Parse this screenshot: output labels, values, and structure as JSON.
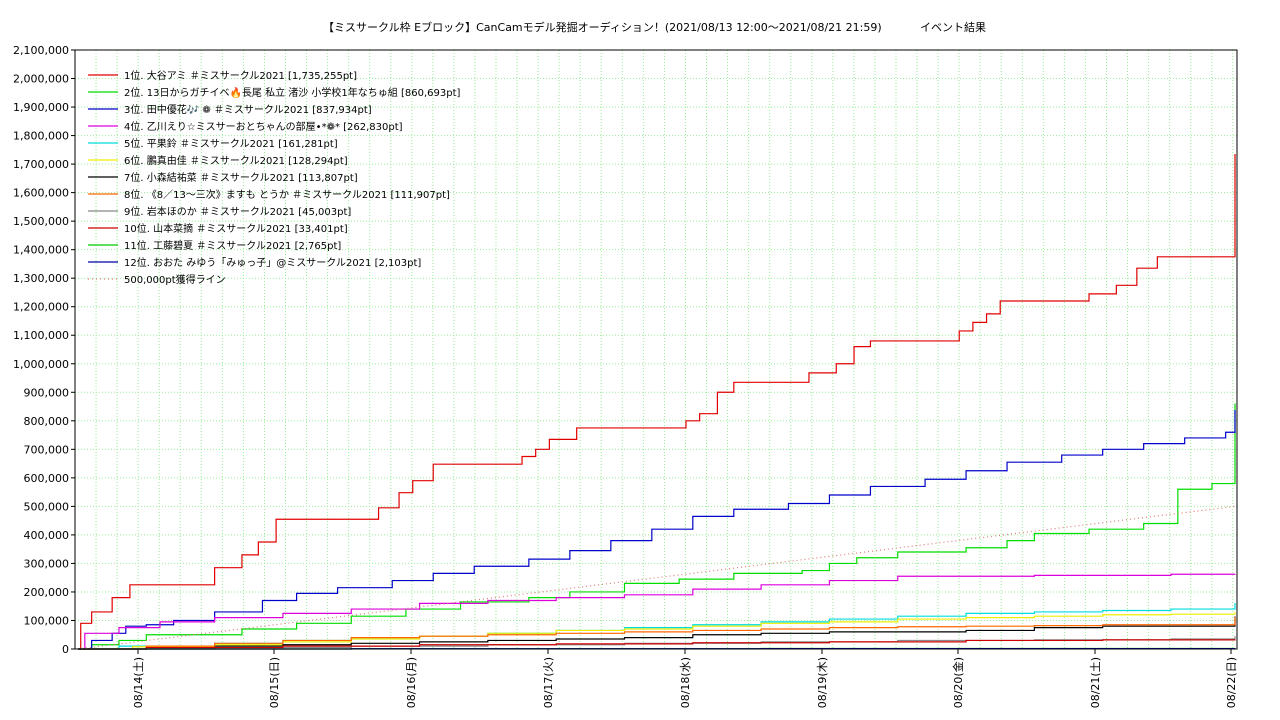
{
  "chart_data": {
    "type": "line",
    "title": "【ミスサークル枠 Eブロック】CanCamモデル発掘オーディション！(2021/08/13 12:00〜2021/08/21 21:59)",
    "subtitle": "イベント結果",
    "xlabel": "",
    "ylabel": "",
    "ylim": [
      0,
      2100000
    ],
    "yticks": [
      0,
      100000,
      200000,
      300000,
      400000,
      500000,
      600000,
      700000,
      800000,
      900000,
      1000000,
      1100000,
      1200000,
      1300000,
      1400000,
      1500000,
      1600000,
      1700000,
      1800000,
      1900000,
      2000000,
      2100000
    ],
    "ytick_labels": [
      "0",
      "100,000",
      "200,000",
      "300,000",
      "400,000",
      "500,000",
      "600,000",
      "700,000",
      "800,000",
      "900,000",
      "1,000,000",
      "1,100,000",
      "1,200,000",
      "1,300,000",
      "1,400,000",
      "1,500,000",
      "1,600,000",
      "1,700,000",
      "1,800,000",
      "1,900,000",
      "2,000,000",
      "2,100,000"
    ],
    "xlim_hours": [
      0,
      8.5
    ],
    "xticks": [
      0.5,
      1.5,
      2.5,
      3.5,
      4.5,
      5.5,
      6.5,
      7.5,
      8.5
    ],
    "xtick_labels": [
      "08/14(土)",
      "08/15(日)",
      "08/16(月)",
      "08/17(火)",
      "08/18(水)",
      "08/19(木)",
      "08/20(金)",
      "08/21(土)",
      "08/22(日)"
    ],
    "grid": true,
    "legend_position": "top-left",
    "series": [
      {
        "name": "1位. 大谷アミ ＃ミスサークル2021 [1,735,255pt]",
        "color": "#e00000",
        "points": [
          [
            0.0,
            0
          ],
          [
            0.02,
            90000
          ],
          [
            0.1,
            130000
          ],
          [
            0.25,
            180000
          ],
          [
            0.38,
            225000
          ],
          [
            0.8,
            225000
          ],
          [
            1.0,
            285000
          ],
          [
            1.2,
            330000
          ],
          [
            1.32,
            375000
          ],
          [
            1.45,
            455000
          ],
          [
            2.0,
            455000
          ],
          [
            2.2,
            495000
          ],
          [
            2.35,
            548000
          ],
          [
            2.45,
            590000
          ],
          [
            2.6,
            648000
          ],
          [
            3.1,
            648000
          ],
          [
            3.25,
            675000
          ],
          [
            3.35,
            700000
          ],
          [
            3.45,
            735000
          ],
          [
            3.65,
            775000
          ],
          [
            4.3,
            775000
          ],
          [
            4.45,
            800000
          ],
          [
            4.55,
            825000
          ],
          [
            4.68,
            900000
          ],
          [
            4.8,
            935000
          ],
          [
            5.3,
            935000
          ],
          [
            5.35,
            968000
          ],
          [
            5.55,
            1000000
          ],
          [
            5.68,
            1060000
          ],
          [
            5.8,
            1080000
          ],
          [
            6.3,
            1080000
          ],
          [
            6.45,
            1115000
          ],
          [
            6.55,
            1145000
          ],
          [
            6.65,
            1175000
          ],
          [
            6.75,
            1220000
          ],
          [
            7.25,
            1220000
          ],
          [
            7.4,
            1245000
          ],
          [
            7.6,
            1275000
          ],
          [
            7.75,
            1335000
          ],
          [
            7.9,
            1375000
          ],
          [
            8.4,
            1375000
          ],
          [
            8.55,
            1415000
          ],
          [
            8.7,
            1455000
          ],
          [
            8.85,
            1515000
          ],
          [
            9.0,
            1550000
          ],
          [
            9.05,
            1735255
          ],
          [
            9.2,
            1735255
          ]
        ]
      },
      {
        "name": "2位. 13日からガチイベ🔥長尾 私立 渚沙 小学校1年なちゅ組 [860,693pt]",
        "color": "#00dd00",
        "points": [
          [
            0.0,
            0
          ],
          [
            0.1,
            15000
          ],
          [
            0.3,
            30000
          ],
          [
            0.5,
            50000
          ],
          [
            1.0,
            50000
          ],
          [
            1.2,
            70000
          ],
          [
            1.6,
            90000
          ],
          [
            2.0,
            115000
          ],
          [
            2.4,
            140000
          ],
          [
            2.8,
            165000
          ],
          [
            3.3,
            180000
          ],
          [
            3.6,
            200000
          ],
          [
            4.0,
            230000
          ],
          [
            4.4,
            245000
          ],
          [
            4.8,
            265000
          ],
          [
            5.3,
            275000
          ],
          [
            5.5,
            300000
          ],
          [
            5.7,
            320000
          ],
          [
            6.0,
            340000
          ],
          [
            6.5,
            355000
          ],
          [
            6.8,
            380000
          ],
          [
            7.0,
            405000
          ],
          [
            7.4,
            420000
          ],
          [
            7.8,
            440000
          ],
          [
            8.0,
            440000
          ],
          [
            8.05,
            560000
          ],
          [
            8.3,
            580000
          ],
          [
            8.5,
            600000
          ],
          [
            8.75,
            640000
          ],
          [
            8.9,
            660000
          ],
          [
            9.0,
            700000
          ],
          [
            9.05,
            860693
          ],
          [
            9.2,
            860693
          ]
        ]
      },
      {
        "name": "3位. 田中優花🎶 ❁ ＃ミスサークル2021 [837,934pt]",
        "color": "#0000cc",
        "points": [
          [
            0.0,
            0
          ],
          [
            0.1,
            30000
          ],
          [
            0.25,
            55000
          ],
          [
            0.35,
            80000
          ],
          [
            0.5,
            85000
          ],
          [
            0.7,
            100000
          ],
          [
            1.0,
            130000
          ],
          [
            1.35,
            170000
          ],
          [
            1.6,
            195000
          ],
          [
            1.9,
            215000
          ],
          [
            2.3,
            240000
          ],
          [
            2.6,
            265000
          ],
          [
            2.9,
            290000
          ],
          [
            3.3,
            315000
          ],
          [
            3.6,
            345000
          ],
          [
            3.9,
            380000
          ],
          [
            4.2,
            420000
          ],
          [
            4.5,
            465000
          ],
          [
            4.8,
            490000
          ],
          [
            5.2,
            510000
          ],
          [
            5.5,
            540000
          ],
          [
            5.8,
            570000
          ],
          [
            6.2,
            595000
          ],
          [
            6.5,
            625000
          ],
          [
            6.8,
            655000
          ],
          [
            7.2,
            680000
          ],
          [
            7.5,
            700000
          ],
          [
            7.8,
            720000
          ],
          [
            8.1,
            740000
          ],
          [
            8.4,
            760000
          ],
          [
            8.6,
            780000
          ],
          [
            8.9,
            800000
          ],
          [
            9.05,
            837934
          ],
          [
            9.2,
            837934
          ]
        ]
      },
      {
        "name": "4位. 乙川えり☆ミスサーおとちゃんの部屋•*❁* [262,830pt]",
        "color": "#dd00dd",
        "points": [
          [
            0.0,
            0
          ],
          [
            0.05,
            55000
          ],
          [
            0.3,
            75000
          ],
          [
            0.6,
            95000
          ],
          [
            1.0,
            110000
          ],
          [
            1.5,
            125000
          ],
          [
            2.0,
            140000
          ],
          [
            2.5,
            160000
          ],
          [
            3.0,
            170000
          ],
          [
            3.5,
            180000
          ],
          [
            4.0,
            190000
          ],
          [
            4.5,
            210000
          ],
          [
            5.0,
            225000
          ],
          [
            5.5,
            240000
          ],
          [
            6.0,
            255000
          ],
          [
            7.0,
            258000
          ],
          [
            8.0,
            262000
          ],
          [
            9.2,
            262830
          ]
        ]
      },
      {
        "name": "5位. 平果鈴 ＃ミスサークル2021 [161,281pt]",
        "color": "#00dddd",
        "points": [
          [
            0.0,
            0
          ],
          [
            0.3,
            10000
          ],
          [
            1.0,
            20000
          ],
          [
            1.5,
            30000
          ],
          [
            2.0,
            40000
          ],
          [
            2.5,
            45000
          ],
          [
            3.0,
            55000
          ],
          [
            3.5,
            65000
          ],
          [
            4.0,
            75000
          ],
          [
            4.5,
            85000
          ],
          [
            5.0,
            95000
          ],
          [
            5.5,
            105000
          ],
          [
            6.0,
            115000
          ],
          [
            6.5,
            125000
          ],
          [
            7.0,
            130000
          ],
          [
            7.5,
            135000
          ],
          [
            8.0,
            140000
          ],
          [
            8.9,
            160000
          ],
          [
            9.2,
            161281
          ]
        ]
      },
      {
        "name": "6位. 鵬真由佳 ＃ミスサークル2021 [128,294pt]",
        "color": "#eeee00",
        "points": [
          [
            0.0,
            0
          ],
          [
            0.4,
            8000
          ],
          [
            1.0,
            15000
          ],
          [
            1.5,
            25000
          ],
          [
            2.0,
            35000
          ],
          [
            2.5,
            45000
          ],
          [
            3.0,
            55000
          ],
          [
            3.5,
            65000
          ],
          [
            4.0,
            70000
          ],
          [
            4.5,
            80000
          ],
          [
            5.0,
            90000
          ],
          [
            5.5,
            95000
          ],
          [
            6.0,
            105000
          ],
          [
            6.5,
            110000
          ],
          [
            7.0,
            115000
          ],
          [
            7.5,
            120000
          ],
          [
            8.0,
            122000
          ],
          [
            8.9,
            125000
          ],
          [
            9.2,
            128294
          ]
        ]
      },
      {
        "name": "7位. 小森結祐菜 ＃ミスサークル2021 [113,807pt]",
        "color": "#000000",
        "points": [
          [
            0.0,
            0
          ],
          [
            0.5,
            5000
          ],
          [
            1.0,
            10000
          ],
          [
            1.5,
            15000
          ],
          [
            2.0,
            20000
          ],
          [
            2.5,
            25000
          ],
          [
            3.0,
            30000
          ],
          [
            3.5,
            35000
          ],
          [
            4.0,
            40000
          ],
          [
            4.5,
            50000
          ],
          [
            5.0,
            55000
          ],
          [
            5.5,
            60000
          ],
          [
            6.0,
            60000
          ],
          [
            6.5,
            65000
          ],
          [
            7.0,
            75000
          ],
          [
            7.5,
            80000
          ],
          [
            8.0,
            80000
          ],
          [
            8.6,
            90000
          ],
          [
            8.9,
            110000
          ],
          [
            9.2,
            113807
          ]
        ]
      },
      {
        "name": "8位. 《8／13〜三次》ますも とうか ＃ミスサークル2021 [111,907pt]",
        "color": "#ff6600",
        "points": [
          [
            0.0,
            0
          ],
          [
            0.5,
            10000
          ],
          [
            1.0,
            20000
          ],
          [
            1.5,
            30000
          ],
          [
            2.0,
            40000
          ],
          [
            2.5,
            45000
          ],
          [
            3.0,
            50000
          ],
          [
            3.5,
            55000
          ],
          [
            4.0,
            60000
          ],
          [
            4.5,
            65000
          ],
          [
            5.0,
            70000
          ],
          [
            5.5,
            75000
          ],
          [
            6.0,
            78000
          ],
          [
            6.5,
            80000
          ],
          [
            7.0,
            82000
          ],
          [
            7.5,
            85000
          ],
          [
            8.0,
            85000
          ],
          [
            8.9,
            100000
          ],
          [
            9.2,
            111907
          ]
        ]
      },
      {
        "name": "9位. 岩本ほのか ＃ミスサークル2021 [45,003pt]",
        "color": "#888888",
        "points": [
          [
            0.0,
            0
          ],
          [
            1.0,
            5000
          ],
          [
            2.0,
            10000
          ],
          [
            3.0,
            15000
          ],
          [
            4.0,
            20000
          ],
          [
            5.0,
            25000
          ],
          [
            6.0,
            30000
          ],
          [
            7.0,
            32000
          ],
          [
            8.0,
            35000
          ],
          [
            8.9,
            40000
          ],
          [
            9.2,
            45003
          ]
        ]
      },
      {
        "name": "10位. 山本菜摘 ＃ミスサークル2021 [33,401pt]",
        "color": "#cc0000",
        "points": [
          [
            0.0,
            0
          ],
          [
            0.5,
            5000
          ],
          [
            1.5,
            10000
          ],
          [
            2.5,
            15000
          ],
          [
            3.5,
            18000
          ],
          [
            4.5,
            22000
          ],
          [
            5.5,
            25000
          ],
          [
            6.5,
            30000
          ],
          [
            7.5,
            32000
          ],
          [
            8.5,
            33000
          ],
          [
            9.2,
            33401
          ]
        ]
      },
      {
        "name": "11位. 工藤碧夏 ＃ミスサークル2021 [2,765pt]",
        "color": "#00cc00",
        "points": [
          [
            0.0,
            0
          ],
          [
            2.0,
            1000
          ],
          [
            5.0,
            2000
          ],
          [
            9.2,
            2765
          ]
        ]
      },
      {
        "name": "12位. おおた みゆう「みゅっ子」@ミスサークル2021 [2,103pt]",
        "color": "#0000aa",
        "points": [
          [
            0.0,
            0
          ],
          [
            2.0,
            800
          ],
          [
            5.0,
            1500
          ],
          [
            9.2,
            2103
          ]
        ]
      },
      {
        "name": "500,000pt獲得ライン",
        "color": "#dd7777",
        "dotted": true,
        "points": [
          [
            0.0,
            0
          ],
          [
            9.2,
            500000
          ]
        ]
      }
    ]
  }
}
